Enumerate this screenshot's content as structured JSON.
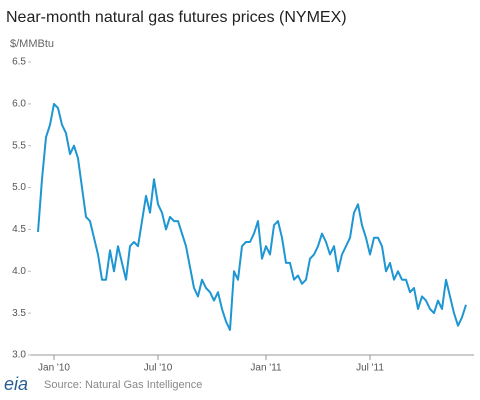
{
  "chart_data": {
    "type": "line",
    "title": "Near-month natural gas futures prices (NYMEX)",
    "y_label": "$/MMBtu",
    "source": "Source: Natural Gas Intelligence",
    "logo": "eia",
    "color": "#1e96d2",
    "categories": [
      null,
      null,
      null,
      null,
      "Jan '10",
      null,
      null,
      null,
      null,
      null,
      null,
      null,
      null,
      null,
      null,
      null,
      null,
      null,
      null,
      null,
      null,
      null,
      null,
      null,
      null,
      null,
      null,
      null,
      null,
      null,
      "Jul '10",
      null,
      null,
      null,
      null,
      null,
      null,
      null,
      null,
      null,
      null,
      null,
      null,
      null,
      null,
      null,
      null,
      null,
      null,
      null,
      null,
      null,
      null,
      null,
      null,
      null,
      null,
      "Jan '11",
      null,
      null,
      null,
      null,
      null,
      null,
      null,
      null,
      null,
      null,
      null,
      null,
      null,
      null,
      null,
      null,
      null,
      null,
      null,
      null,
      null,
      null,
      null,
      null,
      null,
      "Jul '11",
      null,
      null,
      null,
      null,
      null,
      null,
      null,
      null,
      null,
      null,
      null,
      null,
      null,
      null,
      null,
      null,
      null,
      null,
      null,
      null,
      null,
      null,
      null,
      null
    ],
    "values": [
      4.47,
      5.1,
      5.6,
      5.75,
      6.0,
      5.95,
      5.75,
      5.65,
      5.4,
      5.5,
      5.35,
      5.0,
      4.65,
      4.6,
      4.4,
      4.2,
      3.9,
      3.9,
      4.25,
      4.0,
      4.3,
      4.1,
      3.9,
      4.3,
      4.35,
      4.3,
      4.6,
      4.9,
      4.7,
      5.1,
      4.8,
      4.7,
      4.5,
      4.65,
      4.6,
      4.6,
      4.45,
      4.3,
      4.05,
      3.8,
      3.7,
      3.9,
      3.8,
      3.75,
      3.65,
      3.75,
      3.55,
      3.4,
      3.3,
      4.0,
      3.9,
      4.3,
      4.35,
      4.35,
      4.45,
      4.6,
      4.15,
      4.3,
      4.2,
      4.55,
      4.6,
      4.4,
      4.1,
      4.1,
      3.9,
      3.95,
      3.85,
      3.9,
      4.15,
      4.2,
      4.3,
      4.45,
      4.35,
      4.2,
      4.3,
      4.0,
      4.2,
      4.3,
      4.4,
      4.7,
      4.8,
      4.55,
      4.4,
      4.2,
      4.4,
      4.4,
      4.3,
      4.0,
      4.1,
      3.9,
      4.0,
      3.9,
      3.9,
      3.75,
      3.8,
      3.55,
      3.7,
      3.65,
      3.55,
      3.5,
      3.65,
      3.55,
      3.9,
      3.7,
      3.5,
      3.35,
      3.45,
      3.6
    ],
    "ylim": [
      3,
      6.5
    ],
    "yticks": [
      {
        "value": 3,
        "label": "3.0"
      },
      3.5,
      {
        "value": 4,
        "label": "4.0"
      },
      4.5,
      {
        "value": 5,
        "label": "5.0"
      },
      5.5,
      {
        "value": 6,
        "label": "6.0"
      },
      6.5
    ],
    "grid": false
  }
}
